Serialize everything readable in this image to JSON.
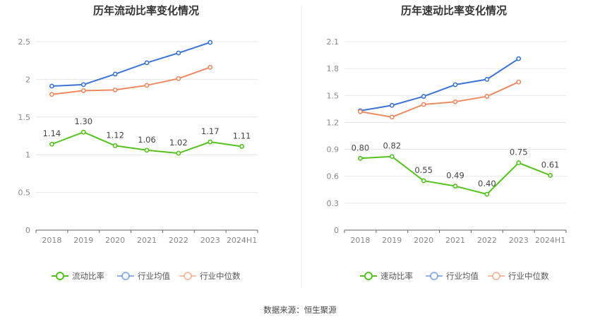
{
  "source_note": "数据来源：恒生聚源",
  "chart_data": [
    {
      "type": "line",
      "title": "历年流动比率变化情况",
      "categories": [
        "2018",
        "2019",
        "2020",
        "2021",
        "2022",
        "2023",
        "2024H1"
      ],
      "ylim": [
        0,
        2.5
      ],
      "yticks": [
        "0",
        "0.5",
        "1",
        "1.5",
        "2",
        "2.5"
      ],
      "ytick_values": [
        0,
        0.5,
        1,
        1.5,
        2,
        2.5
      ],
      "grid": true,
      "legend_position": "bottom",
      "series": [
        {
          "name": "流动比率",
          "color": "#52c41a",
          "values": [
            1.14,
            1.3,
            1.12,
            1.06,
            1.02,
            1.17,
            1.11
          ],
          "labels": [
            "1.14",
            "1.30",
            "1.12",
            "1.06",
            "1.02",
            "1.17",
            "1.11"
          ]
        },
        {
          "name": "行业均值",
          "color": "#3b73d9",
          "values": [
            1.91,
            1.93,
            2.07,
            2.22,
            2.35,
            2.49,
            null
          ]
        },
        {
          "name": "行业中位数",
          "color": "#f08860",
          "values": [
            1.8,
            1.85,
            1.86,
            1.92,
            2.01,
            2.16,
            null
          ]
        }
      ]
    },
    {
      "type": "line",
      "title": "历年速动比率变化情况",
      "categories": [
        "2018",
        "2019",
        "2020",
        "2021",
        "2022",
        "2023",
        "2024H1"
      ],
      "ylim": [
        0,
        2.1
      ],
      "yticks": [
        "0",
        "0.3",
        "0.6",
        "0.9",
        "1.2",
        "1.5",
        "1.8",
        "2.1"
      ],
      "ytick_values": [
        0,
        0.3,
        0.6,
        0.9,
        1.2,
        1.5,
        1.8,
        2.1
      ],
      "grid": true,
      "legend_position": "bottom",
      "series": [
        {
          "name": "速动比率",
          "color": "#52c41a",
          "values": [
            0.8,
            0.82,
            0.55,
            0.49,
            0.4,
            0.75,
            0.61
          ],
          "labels": [
            "0.80",
            "0.82",
            "0.55",
            "0.49",
            "0.40",
            "0.75",
            "0.61"
          ]
        },
        {
          "name": "行业均值",
          "color": "#3b73d9",
          "values": [
            1.33,
            1.39,
            1.49,
            1.62,
            1.68,
            1.91,
            null
          ]
        },
        {
          "name": "行业中位数",
          "color": "#f08860",
          "values": [
            1.32,
            1.26,
            1.4,
            1.43,
            1.49,
            1.65,
            null
          ]
        }
      ]
    }
  ]
}
